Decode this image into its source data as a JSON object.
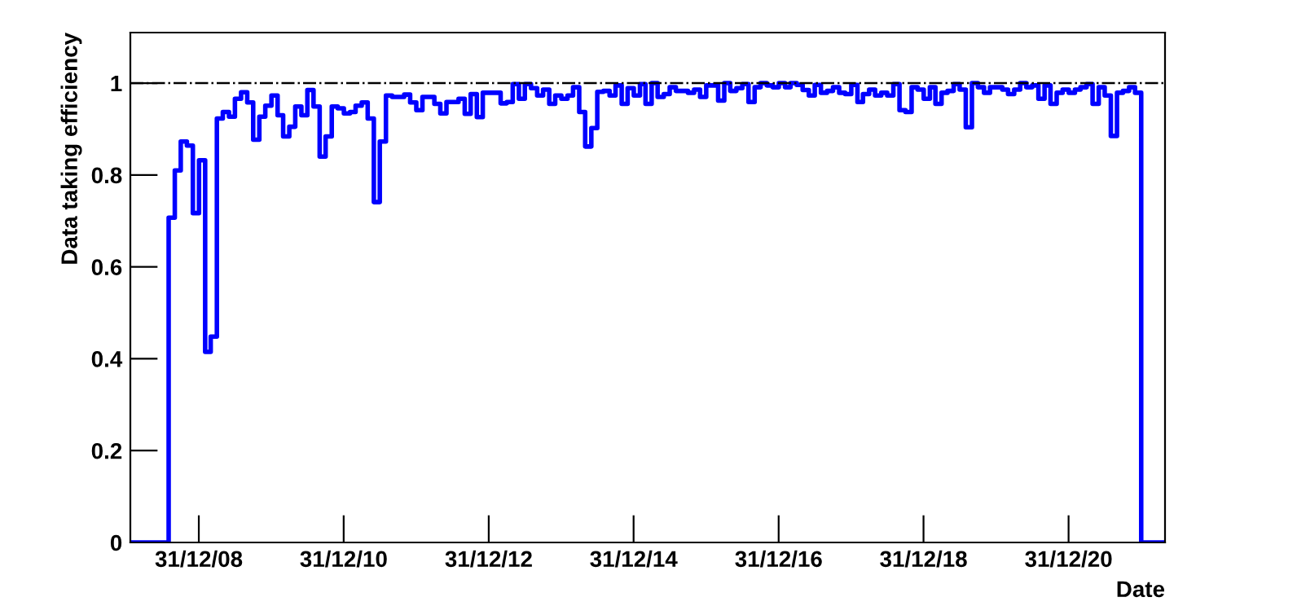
{
  "chart_data": {
    "type": "step",
    "xlabel": "Date",
    "ylabel": "Data taking efficiency",
    "x": [
      "2008-01-21",
      "2008-08",
      "2008-09",
      "2008-10",
      "2008-11",
      "2008-12",
      "2009-01",
      "2009-02",
      "2009-03",
      "2009-04",
      "2009-05",
      "2009-06",
      "2009-07",
      "2009-08",
      "2009-09",
      "2009-10",
      "2009-11",
      "2009-12",
      "2010-01",
      "2010-02",
      "2010-03",
      "2010-04",
      "2010-05",
      "2010-06",
      "2010-07",
      "2010-08",
      "2010-09",
      "2010-10",
      "2010-11",
      "2010-12",
      "2011-01",
      "2011-02",
      "2011-03",
      "2011-04",
      "2011-05",
      "2011-06",
      "2011-07",
      "2011-08",
      "2011-09",
      "2011-10",
      "2011-11",
      "2011-12",
      "2012-01",
      "2012-02",
      "2012-03",
      "2012-04",
      "2012-05",
      "2012-06",
      "2012-07",
      "2012-08",
      "2012-09",
      "2012-10",
      "2012-11",
      "2012-12",
      "2013-01",
      "2013-02",
      "2013-03",
      "2013-04",
      "2013-05",
      "2013-06",
      "2013-07",
      "2013-08",
      "2013-09",
      "2013-10",
      "2013-11",
      "2013-12",
      "2014-01",
      "2014-02",
      "2014-03",
      "2014-04",
      "2014-05",
      "2014-06",
      "2014-07",
      "2014-08",
      "2014-09",
      "2014-10",
      "2014-11",
      "2014-12",
      "2015-01",
      "2015-02",
      "2015-03",
      "2015-04",
      "2015-05",
      "2015-06",
      "2015-07",
      "2015-08",
      "2015-09",
      "2015-10",
      "2015-11",
      "2015-12",
      "2016-01",
      "2016-02",
      "2016-03",
      "2016-04",
      "2016-05",
      "2016-06",
      "2016-07",
      "2016-08",
      "2016-09",
      "2016-10",
      "2016-11",
      "2016-12",
      "2017-01",
      "2017-02",
      "2017-03",
      "2017-04",
      "2017-05",
      "2017-06",
      "2017-07",
      "2017-08",
      "2017-09",
      "2017-10",
      "2017-11",
      "2017-12",
      "2018-01",
      "2018-02",
      "2018-03",
      "2018-04",
      "2018-05",
      "2018-06",
      "2018-07",
      "2018-08",
      "2018-09",
      "2018-10",
      "2018-11",
      "2018-12",
      "2019-01",
      "2019-02",
      "2019-03",
      "2019-04",
      "2019-05",
      "2019-06",
      "2019-07",
      "2019-08",
      "2019-09",
      "2019-10",
      "2019-11",
      "2019-12",
      "2020-01",
      "2020-02",
      "2020-03",
      "2020-04",
      "2020-05",
      "2020-06",
      "2020-07",
      "2020-08",
      "2020-09",
      "2020-10",
      "2020-11",
      "2020-12",
      "2021-01",
      "2021-02",
      "2021-03",
      "2021-04",
      "2021-05",
      "2021-06",
      "2021-07",
      "2021-08",
      "2021-09",
      "2021-10",
      "2021-11",
      "2021-12",
      "2022-01",
      "2022-05-01"
    ],
    "values": [
      0,
      0.707,
      0.81,
      0.873,
      0.864,
      0.717,
      0.832,
      0.415,
      0.448,
      0.923,
      0.937,
      0.927,
      0.966,
      0.98,
      0.958,
      0.877,
      0.927,
      0.951,
      0.973,
      0.93,
      0.884,
      0.905,
      0.949,
      0.93,
      0.985,
      0.949,
      0.84,
      0.884,
      0.949,
      0.945,
      0.934,
      0.937,
      0.951,
      0.958,
      0.923,
      0.741,
      0.873,
      0.973,
      0.97,
      0.97,
      0.975,
      0.958,
      0.941,
      0.97,
      0.97,
      0.955,
      0.934,
      0.959,
      0.959,
      0.966,
      0.933,
      0.976,
      0.926,
      0.979,
      0.979,
      0.979,
      0.956,
      0.959,
      0.998,
      0.966,
      0.998,
      0.989,
      0.973,
      0.986,
      0.955,
      0.973,
      0.966,
      0.973,
      0.991,
      0.937,
      0.862,
      0.902,
      0.981,
      0.983,
      0.973,
      0.995,
      0.955,
      0.989,
      0.973,
      0.998,
      0.955,
      1.0,
      0.97,
      0.976,
      0.991,
      0.983,
      0.983,
      0.979,
      0.986,
      0.97,
      0.995,
      0.995,
      0.962,
      1.0,
      0.983,
      0.989,
      0.998,
      0.959,
      0.991,
      1.0,
      0.995,
      0.991,
      1.0,
      0.991,
      1.0,
      0.996,
      0.985,
      0.973,
      0.996,
      0.979,
      0.983,
      0.991,
      0.979,
      0.976,
      0.996,
      0.959,
      0.976,
      0.986,
      0.973,
      0.979,
      0.973,
      0.998,
      0.941,
      0.937,
      0.991,
      0.986,
      0.966,
      0.991,
      0.955,
      0.979,
      0.983,
      0.998,
      0.986,
      0.904,
      1.0,
      0.991,
      0.979,
      0.991,
      0.991,
      0.986,
      0.976,
      0.986,
      1.0,
      0.991,
      0.995,
      0.966,
      0.995,
      0.955,
      0.979,
      0.986,
      0.979,
      0.986,
      0.991,
      0.998,
      0.955,
      0.991,
      0.973,
      0.885,
      0.979,
      0.983,
      0.991,
      0.979,
      0,
      0
    ],
    "color": "#0000ff",
    "xlim": [
      "2008-01-21",
      "2022-05-01"
    ],
    "ylim": [
      0,
      1.11
    ],
    "xticks": [
      {
        "value": "2008-12-31",
        "label": "31/12/08"
      },
      {
        "value": "2010-12-31",
        "label": "31/12/10"
      },
      {
        "value": "2012-12-31",
        "label": "31/12/12"
      },
      {
        "value": "2014-12-31",
        "label": "31/12/14"
      },
      {
        "value": "2016-12-31",
        "label": "31/12/16"
      },
      {
        "value": "2018-12-31",
        "label": "31/12/18"
      },
      {
        "value": "2020-12-31",
        "label": "31/12/20"
      }
    ],
    "yticks": [
      0,
      0.2,
      0.4,
      0.6,
      0.8,
      1
    ],
    "ref_lines": [
      {
        "axis": "y",
        "value": 1,
        "color": "#000000",
        "line_style": "dashdot"
      }
    ],
    "grid": false,
    "legend": false
  }
}
